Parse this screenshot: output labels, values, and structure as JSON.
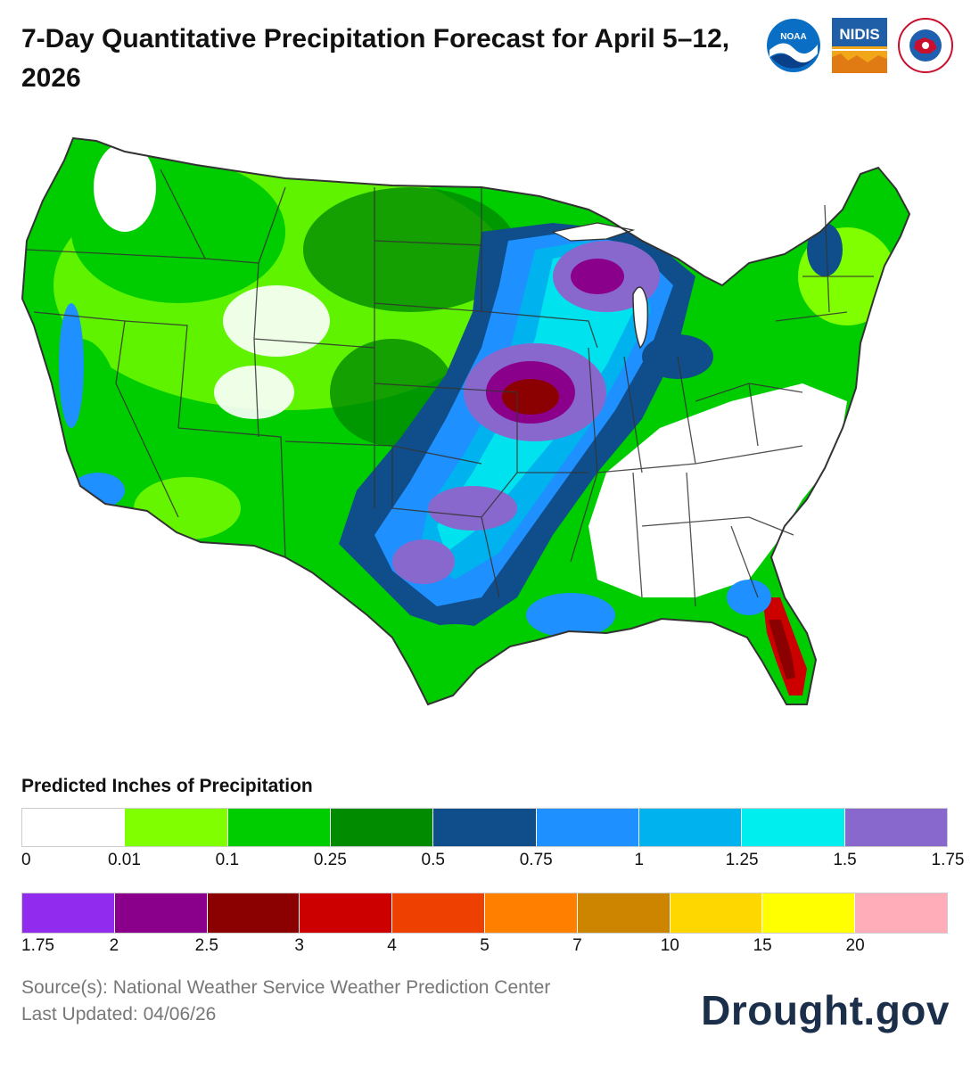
{
  "header": {
    "title": "7-Day Quantitative Precipitation Forecast for April 5–12, 2026",
    "logos": [
      {
        "name": "noaa-logo",
        "text": "NOAA"
      },
      {
        "name": "nidis-logo",
        "text": "NIDIS"
      },
      {
        "name": "nws-logo",
        "text": "NATIONAL WEATHER SERVICE"
      }
    ]
  },
  "map": {
    "icon": "us-precipitation-map",
    "regions_heaviest": [
      "Florida peninsula",
      "Iowa / Missouri",
      "Wisconsin"
    ],
    "regions_dry": [
      "Southeast",
      "Ohio Valley",
      "Mid-Atlantic"
    ]
  },
  "legend": {
    "title": "Predicted Inches of Precipitation",
    "row1": {
      "colors": [
        "#ffffff",
        "#7fff00",
        "#00cd00",
        "#008b00",
        "#104e8b",
        "#1e90ff",
        "#00b2ee",
        "#00eeee",
        "#8968cd"
      ],
      "ticks": [
        "0",
        "0.01",
        "0.1",
        "0.25",
        "0.5",
        "0.75",
        "1",
        "1.25",
        "1.5",
        "1.75"
      ]
    },
    "row2": {
      "colors": [
        "#912cee",
        "#8b008b",
        "#8b0000",
        "#cd0000",
        "#ee4000",
        "#ff7f00",
        "#cd8500",
        "#ffd700",
        "#ffff00",
        "#ffaeb9"
      ],
      "ticks": [
        "1.75",
        "2",
        "2.5",
        "3",
        "4",
        "5",
        "7",
        "10",
        "15",
        "20"
      ]
    }
  },
  "footer": {
    "source": "Source(s): National Weather Service Weather Prediction Center",
    "updated": "Last Updated: 04/06/26",
    "brand": "Drought.gov"
  }
}
